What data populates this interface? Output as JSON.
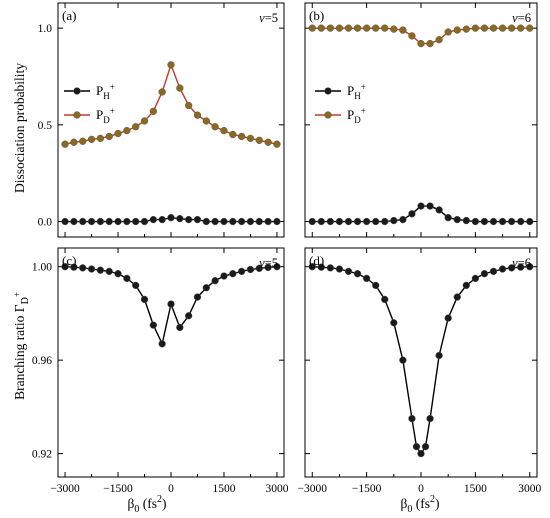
{
  "figure": {
    "y_title_top": "Dissociation probability",
    "y_title_bottom": "Branching ratio Γ_D+",
    "x_title": "β0 (fs2)"
  },
  "chart_data": [
    {
      "id": "a",
      "type": "line",
      "panel_label": "(a)",
      "annotation": "v=5",
      "x_ticks": [
        "-3000",
        "-1500",
        "0",
        "1500",
        "3000"
      ],
      "y_ticks": [
        "0.0",
        "0.5",
        "1.0"
      ],
      "xlim": [
        -3200,
        3200
      ],
      "ylim": [
        -0.08,
        1.13
      ],
      "legend": "left",
      "series": [
        {
          "name": "P_H+",
          "color": "#000000",
          "marker": "#1a1a1a",
          "x": [
            -3000,
            -2750,
            -2500,
            -2250,
            -2000,
            -1750,
            -1500,
            -1250,
            -1000,
            -750,
            -500,
            -250,
            0,
            250,
            500,
            750,
            1000,
            1250,
            1500,
            1750,
            2000,
            2250,
            2500,
            2750,
            3000
          ],
          "values": [
            0.0,
            0.0,
            0.0,
            0.0,
            0.0,
            0.0,
            0.0,
            0.0,
            0.0,
            0.0,
            0.01,
            0.01,
            0.02,
            0.015,
            0.01,
            0.01,
            0.0,
            0.0,
            0.0,
            0.0,
            0.0,
            0.0,
            0.0,
            0.0,
            0.0
          ]
        },
        {
          "name": "P_D+",
          "color": "#c0392b",
          "marker": "#8b6a1f",
          "x": [
            -3000,
            -2750,
            -2500,
            -2250,
            -2000,
            -1750,
            -1500,
            -1250,
            -1000,
            -750,
            -500,
            -250,
            0,
            250,
            500,
            750,
            1000,
            1250,
            1500,
            1750,
            2000,
            2250,
            2500,
            2750,
            3000
          ],
          "values": [
            0.4,
            0.41,
            0.415,
            0.425,
            0.43,
            0.44,
            0.455,
            0.47,
            0.49,
            0.52,
            0.57,
            0.67,
            0.81,
            0.69,
            0.6,
            0.55,
            0.52,
            0.49,
            0.47,
            0.45,
            0.44,
            0.43,
            0.42,
            0.41,
            0.4
          ]
        }
      ]
    },
    {
      "id": "b",
      "type": "line",
      "panel_label": "(b)",
      "annotation": "v=6",
      "x_ticks": [
        "-3000",
        "-1500",
        "0",
        "1500",
        "3000"
      ],
      "y_ticks": [
        "0.0",
        "0.5",
        "1.0"
      ],
      "xlim": [
        -3200,
        3200
      ],
      "ylim": [
        -0.08,
        1.13
      ],
      "legend": "left",
      "series": [
        {
          "name": "P_H+",
          "color": "#000000",
          "marker": "#1a1a1a",
          "x": [
            -3000,
            -2750,
            -2500,
            -2250,
            -2000,
            -1750,
            -1500,
            -1250,
            -1000,
            -750,
            -500,
            -250,
            0,
            250,
            500,
            750,
            1000,
            1250,
            1500,
            1750,
            2000,
            2250,
            2500,
            2750,
            3000
          ],
          "values": [
            0.0,
            0.0,
            0.0,
            0.0,
            0.0,
            0.0,
            0.0,
            0.0,
            0.0,
            0.005,
            0.01,
            0.04,
            0.08,
            0.08,
            0.06,
            0.02,
            0.01,
            0.005,
            0.0,
            0.0,
            0.0,
            0.0,
            0.0,
            0.0,
            0.0
          ]
        },
        {
          "name": "P_D+",
          "color": "#c0392b",
          "marker": "#8b6a1f",
          "x": [
            -3000,
            -2750,
            -2500,
            -2250,
            -2000,
            -1750,
            -1500,
            -1250,
            -1000,
            -750,
            -500,
            -250,
            0,
            250,
            500,
            750,
            1000,
            1250,
            1500,
            1750,
            2000,
            2250,
            2500,
            2750,
            3000
          ],
          "values": [
            1.0,
            1.0,
            1.0,
            1.0,
            1.0,
            1.0,
            1.0,
            1.0,
            1.0,
            0.995,
            0.99,
            0.96,
            0.92,
            0.92,
            0.94,
            0.98,
            0.99,
            0.995,
            1.0,
            1.0,
            1.0,
            1.0,
            1.0,
            1.0,
            1.0
          ]
        }
      ]
    },
    {
      "id": "c",
      "type": "line",
      "panel_label": "(c)",
      "annotation": "v=5",
      "x_ticks": [
        "-3000",
        "-1500",
        "0",
        "1500",
        "3000"
      ],
      "y_ticks": [
        "0.92",
        "0.96",
        "1.00"
      ],
      "xlim": [
        -3200,
        3200
      ],
      "ylim": [
        0.91,
        1.008
      ],
      "series": [
        {
          "name": "",
          "color": "#000000",
          "marker": "#1a1a1a",
          "x": [
            -3000,
            -2750,
            -2500,
            -2250,
            -2000,
            -1750,
            -1500,
            -1250,
            -1000,
            -750,
            -500,
            -250,
            0,
            250,
            500,
            750,
            1000,
            1250,
            1500,
            1750,
            2000,
            2250,
            2500,
            2750,
            3000
          ],
          "values": [
            1.0,
            0.9998,
            0.9995,
            0.999,
            0.9985,
            0.998,
            0.997,
            0.995,
            0.992,
            0.986,
            0.975,
            0.967,
            0.984,
            0.974,
            0.979,
            0.987,
            0.991,
            0.994,
            0.996,
            0.997,
            0.998,
            0.9988,
            0.9993,
            0.9997,
            1.0
          ]
        }
      ]
    },
    {
      "id": "d",
      "type": "line",
      "panel_label": "(d)",
      "annotation": "v=6",
      "x_ticks": [
        "-3000",
        "-1500",
        "0",
        "1500",
        "3000"
      ],
      "y_ticks": [
        "0.92",
        "0.96",
        "1.00"
      ],
      "xlim": [
        -3200,
        3200
      ],
      "ylim": [
        0.91,
        1.008
      ],
      "series": [
        {
          "name": "",
          "color": "#000000",
          "marker": "#1a1a1a",
          "x": [
            -3000,
            -2750,
            -2500,
            -2250,
            -2000,
            -1750,
            -1500,
            -1250,
            -1000,
            -750,
            -500,
            -250,
            -125,
            0,
            125,
            250,
            500,
            750,
            1000,
            1250,
            1500,
            1750,
            2000,
            2250,
            2500,
            2750,
            3000
          ],
          "values": [
            1.0,
            0.9998,
            0.9995,
            0.999,
            0.998,
            0.997,
            0.995,
            0.992,
            0.986,
            0.976,
            0.96,
            0.935,
            0.923,
            0.92,
            0.923,
            0.935,
            0.962,
            0.978,
            0.987,
            0.992,
            0.995,
            0.997,
            0.998,
            0.999,
            0.9995,
            0.9998,
            1.0
          ]
        }
      ]
    }
  ]
}
